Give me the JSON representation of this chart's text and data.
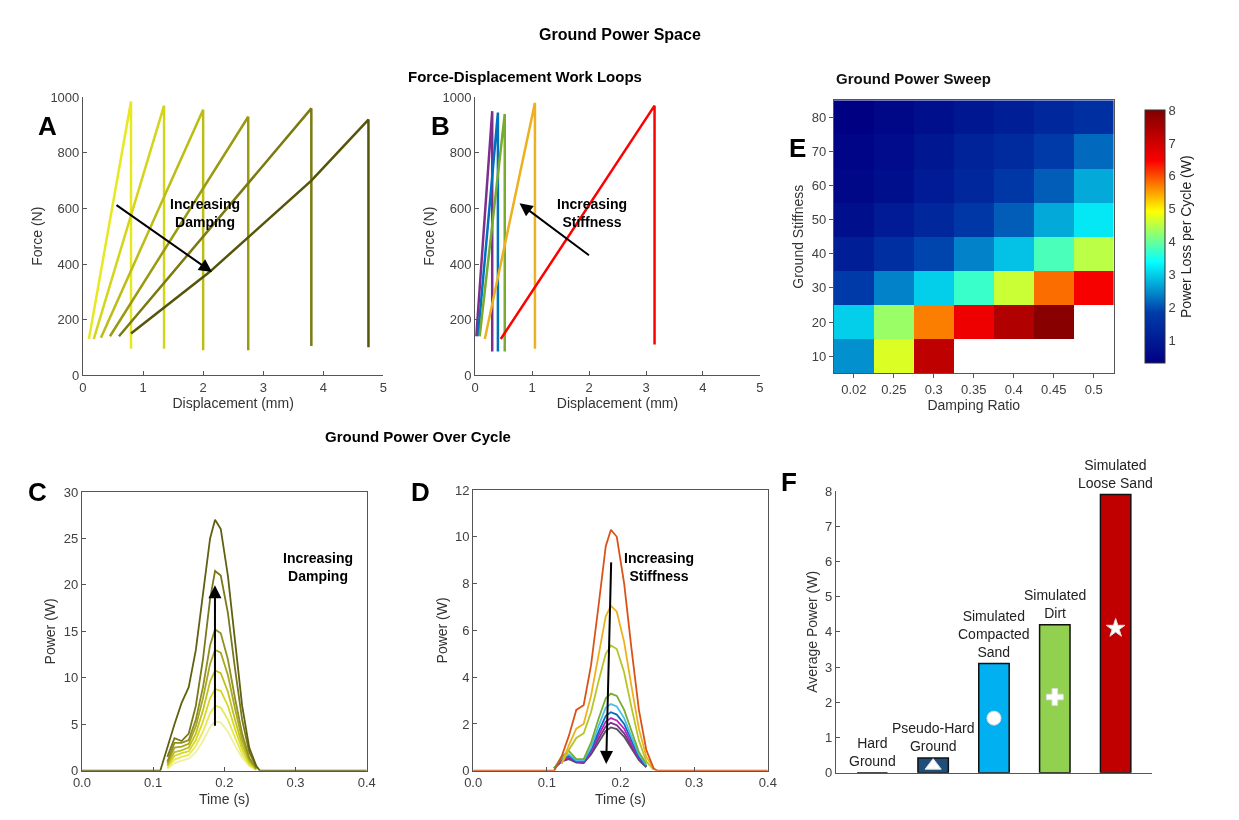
{
  "chart_data": [
    {
      "type": "line",
      "xlabel": "Displacement (mm)",
      "ylabel": "Force (N)",
      "xlim": [
        0,
        5
      ],
      "ylim": [
        0,
        1000
      ],
      "xticks": [
        0,
        1,
        2,
        3,
        4,
        5
      ],
      "yticks": [
        0,
        200,
        400,
        600,
        800,
        1000
      ],
      "annotations": [
        "Ground Power Space",
        "Force-Displacement Work Loops",
        "A",
        "Increasing\nDamping"
      ],
      "series": [
        {
          "color": "#e8e820",
          "x": [
            0.1,
            0.8,
            0.8
          ],
          "values": [
            130,
            985,
            95
          ]
        },
        {
          "color": "#d4d41a",
          "x": [
            0.18,
            1.35,
            1.35
          ],
          "values": [
            130,
            970,
            95
          ]
        },
        {
          "color": "#bcbc14",
          "x": [
            0.3,
            2.0,
            2.0
          ],
          "values": [
            135,
            955,
            90
          ]
        },
        {
          "color": "#9a9a10",
          "x": [
            0.45,
            2.75,
            2.75
          ],
          "values": [
            140,
            930,
            90
          ]
        },
        {
          "color": "#7a7a10",
          "x": [
            0.6,
            3.8,
            3.8
          ],
          "values": [
            140,
            960,
            105
          ]
        },
        {
          "color": "#55550a",
          "x": [
            0.8,
            2.1,
            3.8,
            4.75,
            4.75
          ],
          "values": [
            150,
            370,
            700,
            920,
            100
          ]
        }
      ]
    },
    {
      "type": "line",
      "xlabel": "Displacement (mm)",
      "ylabel": "Force (N)",
      "xlim": [
        0,
        5
      ],
      "ylim": [
        0,
        1000
      ],
      "xticks": [
        0,
        1,
        2,
        3,
        4,
        5
      ],
      "yticks": [
        0,
        200,
        400,
        600,
        800,
        1000
      ],
      "annotations": [
        "B",
        "Increasing\nStiffness"
      ],
      "series": [
        {
          "color": "#7e2f8e",
          "x": [
            0.02,
            0.3,
            0.3
          ],
          "values": [
            140,
            950,
            85
          ]
        },
        {
          "color": "#0072bd",
          "x": [
            0.05,
            0.4,
            0.4
          ],
          "values": [
            140,
            945,
            85
          ]
        },
        {
          "color": "#77ac30",
          "x": [
            0.08,
            0.52,
            0.52
          ],
          "values": [
            140,
            940,
            85
          ]
        },
        {
          "color": "#edb120",
          "x": [
            0.17,
            1.05,
            1.05
          ],
          "values": [
            130,
            980,
            95
          ]
        },
        {
          "color": "#ff0000",
          "x": [
            0.45,
            3.15,
            3.15
          ],
          "values": [
            130,
            970,
            110
          ]
        }
      ]
    },
    {
      "type": "heatmap",
      "title": "Ground Power Sweep",
      "xlabel": "Damping Ratio",
      "ylabel": "Ground Stiffness",
      "clabel": "Power Loss per Cycle (W)",
      "categories": [
        "0.02",
        "0.25",
        "0.3",
        "0.35",
        "0.4",
        "0.45",
        "0.5"
      ],
      "clim": [
        0.3,
        8
      ],
      "cticks": [
        1,
        2,
        3,
        4,
        5,
        6,
        7,
        8
      ],
      "annotations": [
        "E"
      ],
      "y_categories": [
        "80",
        "70",
        "60",
        "50",
        "40",
        "30",
        "20",
        "10"
      ],
      "cells": [
        [
          0.3,
          0.5,
          0.7,
          0.9,
          1.1,
          1.3,
          1.5
        ],
        [
          0.4,
          0.6,
          0.9,
          1.2,
          1.4,
          1.8,
          2.2
        ],
        [
          0.5,
          0.7,
          1.0,
          1.3,
          1.7,
          2.1,
          2.7
        ],
        [
          0.7,
          1.0,
          1.3,
          1.7,
          2.1,
          2.7,
          3.2
        ],
        [
          1.1,
          1.5,
          1.9,
          2.4,
          2.9,
          3.8,
          4.5
        ],
        [
          1.8,
          2.4,
          3.0,
          3.7,
          4.6,
          5.8,
          6.5
        ],
        [
          3.0,
          4.3,
          5.7,
          6.6,
          7.4,
          7.9,
          null
        ],
        [
          2.5,
          4.7,
          7.2,
          null,
          null,
          null,
          null
        ]
      ]
    },
    {
      "type": "line",
      "xlabel": "Time (s)",
      "ylabel": "Power (W)",
      "xlim": [
        0,
        0.4
      ],
      "ylim": [
        0,
        30
      ],
      "xticks": [
        {
          "value": 0,
          "label": "0.0"
        },
        0.1,
        0.2,
        0.3,
        0.4
      ],
      "yticks": [
        0,
        5,
        10,
        15,
        20,
        25,
        30
      ],
      "annotations": [
        "Ground Power Over Cycle",
        "C",
        "Increasing\nDamping"
      ],
      "x": [
        0,
        0.1,
        0.11,
        0.12,
        0.13,
        0.14,
        0.15,
        0.16,
        0.17,
        0.18,
        0.187,
        0.195,
        0.205,
        0.215,
        0.225,
        0.235,
        0.245,
        0.25,
        0.4
      ],
      "series": [
        {
          "color": "#f0f0a0",
          "values": [
            null,
            null,
            null,
            0.2,
            0.8,
            1.1,
            1.3,
            2,
            3.2,
            4.7,
            5.3,
            5.2,
            4.2,
            2.7,
            1.4,
            0.5,
            0.1,
            null,
            null
          ]
        },
        {
          "color": "#e8e850",
          "values": [
            null,
            null,
            null,
            0.3,
            1.2,
            1.5,
            1.7,
            2.7,
            4.2,
            6.2,
            7,
            6.8,
            5.5,
            3.6,
            1.8,
            0.6,
            0.1,
            null,
            null
          ]
        },
        {
          "color": "#d8d820",
          "values": [
            null,
            null,
            null,
            0.5,
            1.6,
            1.9,
            2.1,
            3.3,
            5.3,
            7.8,
            8.8,
            8.6,
            7,
            4.5,
            2.3,
            0.8,
            0.1,
            null,
            null
          ]
        },
        {
          "color": "#c0c020",
          "values": [
            null,
            null,
            null,
            0.6,
            2,
            2.2,
            2.5,
            4,
            6.5,
            9.6,
            10.8,
            10.5,
            8.5,
            5.5,
            2.8,
            1,
            0.2,
            null,
            null
          ]
        },
        {
          "color": "#a8a820",
          "values": [
            null,
            null,
            null,
            0.8,
            2.5,
            2.6,
            2.9,
            4.8,
            7.8,
            11.5,
            13,
            12.7,
            10.3,
            6.7,
            3.4,
            1.2,
            0.2,
            null,
            null
          ]
        },
        {
          "color": "#909020",
          "values": [
            null,
            null,
            null,
            1,
            3,
            3,
            3.3,
            5.5,
            9,
            13.5,
            15.2,
            14.8,
            12,
            7.8,
            4,
            1.4,
            0.3,
            null,
            null
          ]
        },
        {
          "color": "#787818",
          "values": [
            null,
            null,
            null,
            1.5,
            3.5,
            3.2,
            4,
            7,
            12,
            18.5,
            21.5,
            21,
            17,
            11,
            5.5,
            2,
            0.4,
            null,
            null
          ]
        },
        {
          "color": "#606010",
          "values": [
            0,
            0,
            0,
            2.5,
            5,
            7.3,
            9,
            13,
            19,
            25,
            27,
            26,
            21,
            14,
            7,
            2.5,
            0.5,
            0,
            0
          ]
        }
      ]
    },
    {
      "type": "line",
      "xlabel": "Time (s)",
      "ylabel": "Power (W)",
      "xlim": [
        0,
        0.4
      ],
      "ylim": [
        0,
        12
      ],
      "xticks": [
        {
          "value": 0,
          "label": "0.0"
        },
        0.1,
        0.2,
        0.3,
        0.4
      ],
      "yticks": [
        0,
        2,
        4,
        6,
        8,
        10,
        12
      ],
      "annotations": [
        "D",
        "Increasing\nStiffness"
      ],
      "x": [
        0,
        0.1,
        0.11,
        0.12,
        0.13,
        0.14,
        0.15,
        0.16,
        0.17,
        0.18,
        0.187,
        0.195,
        0.205,
        0.215,
        0.225,
        0.235,
        0.245,
        0.25,
        0.4
      ],
      "series": [
        {
          "color": "#555555",
          "values": [
            null,
            null,
            0.1,
            0.4,
            0.5,
            0.35,
            0.33,
            0.7,
            1.2,
            1.7,
            1.85,
            1.78,
            1.45,
            0.95,
            0.45,
            0.15,
            null,
            null,
            null
          ]
        },
        {
          "color": "#7e2f8e",
          "values": [
            null,
            null,
            0.1,
            0.4,
            0.55,
            0.38,
            0.35,
            0.75,
            1.35,
            1.9,
            2.05,
            1.95,
            1.6,
            1.05,
            0.5,
            0.18,
            null,
            null,
            null
          ]
        },
        {
          "color": "#c020c0",
          "values": [
            null,
            null,
            0.1,
            0.45,
            0.6,
            0.4,
            0.38,
            0.8,
            1.5,
            2.1,
            2.25,
            2.15,
            1.8,
            1.15,
            0.55,
            0.2,
            null,
            null,
            null
          ]
        },
        {
          "color": "#0072bd",
          "values": [
            null,
            null,
            0.1,
            0.5,
            0.65,
            0.4,
            0.4,
            0.9,
            1.65,
            2.35,
            2.5,
            2.4,
            2.0,
            1.3,
            0.6,
            0.2,
            null,
            null,
            null
          ]
        },
        {
          "color": "#4dbeee",
          "values": [
            null,
            null,
            0.1,
            0.55,
            0.7,
            0.45,
            0.45,
            1.0,
            1.9,
            2.7,
            2.85,
            2.75,
            2.25,
            1.45,
            0.7,
            0.25,
            null,
            null,
            null
          ]
        },
        {
          "color": "#77ac30",
          "values": [
            null,
            null,
            0.1,
            0.6,
            0.85,
            0.5,
            0.5,
            1.2,
            2.2,
            3.1,
            3.3,
            3.2,
            2.6,
            1.7,
            0.8,
            0.3,
            null,
            null,
            null
          ]
        },
        {
          "color": "#b5c52a",
          "values": [
            null,
            null,
            null,
            0.3,
            0.9,
            1.4,
            1.6,
            2.5,
            3.8,
            5.0,
            5.35,
            5.2,
            4.2,
            2.7,
            1.3,
            0.4,
            0.05,
            null,
            null
          ]
        },
        {
          "color": "#edb120",
          "values": [
            null,
            null,
            null,
            0.3,
            1.1,
            1.8,
            2.0,
            3.2,
            4.9,
            6.6,
            7.05,
            6.8,
            5.5,
            3.6,
            1.8,
            0.6,
            0.1,
            null,
            null
          ]
        },
        {
          "color": "#d95319",
          "values": [
            0,
            0,
            0,
            0.6,
            1.5,
            2.6,
            2.8,
            4.5,
            7,
            9.6,
            10.3,
            10,
            8,
            5.2,
            2.6,
            0.9,
            0.1,
            0,
            0
          ]
        }
      ]
    },
    {
      "type": "bar",
      "ylabel": "Average Power (W)",
      "ylim": [
        0,
        8
      ],
      "yticks": [
        0,
        1,
        2,
        3,
        4,
        5,
        6,
        7,
        8
      ],
      "tick_labels": "y",
      "annotations": [
        "F"
      ],
      "categories": [
        "Hard\nGround",
        "Pseudo-Hard\nGround",
        "Simulated\nCompacted\nSand",
        "Simulated\nDirt",
        "Simulated\nLoose Sand"
      ],
      "values": [
        0,
        0.42,
        3.1,
        4.2,
        7.9
      ],
      "colors": [
        "#111111",
        "#1f4e79",
        "#00b0f0",
        "#92d050",
        "#c00000"
      ],
      "series": [
        {
          "type": "scatter",
          "marker": "triangle",
          "color": "#ffffff",
          "x": [
            "Pseudo-Hard\nGround"
          ],
          "values": [
            0.2
          ]
        },
        {
          "type": "scatter",
          "marker": "circle",
          "color": "#ffffff",
          "x": [
            "Simulated\nCompacted\nSand"
          ],
          "values": [
            1.55
          ]
        },
        {
          "type": "scatter",
          "marker": "cross",
          "color": "#ffffff",
          "x": [
            "Simulated\nDirt"
          ],
          "values": [
            2.15
          ]
        },
        {
          "type": "scatter",
          "marker": "star",
          "color": "#ffffff",
          "x": [
            "Simulated\nLoose Sand"
          ],
          "values": [
            4.1
          ]
        }
      ]
    }
  ]
}
